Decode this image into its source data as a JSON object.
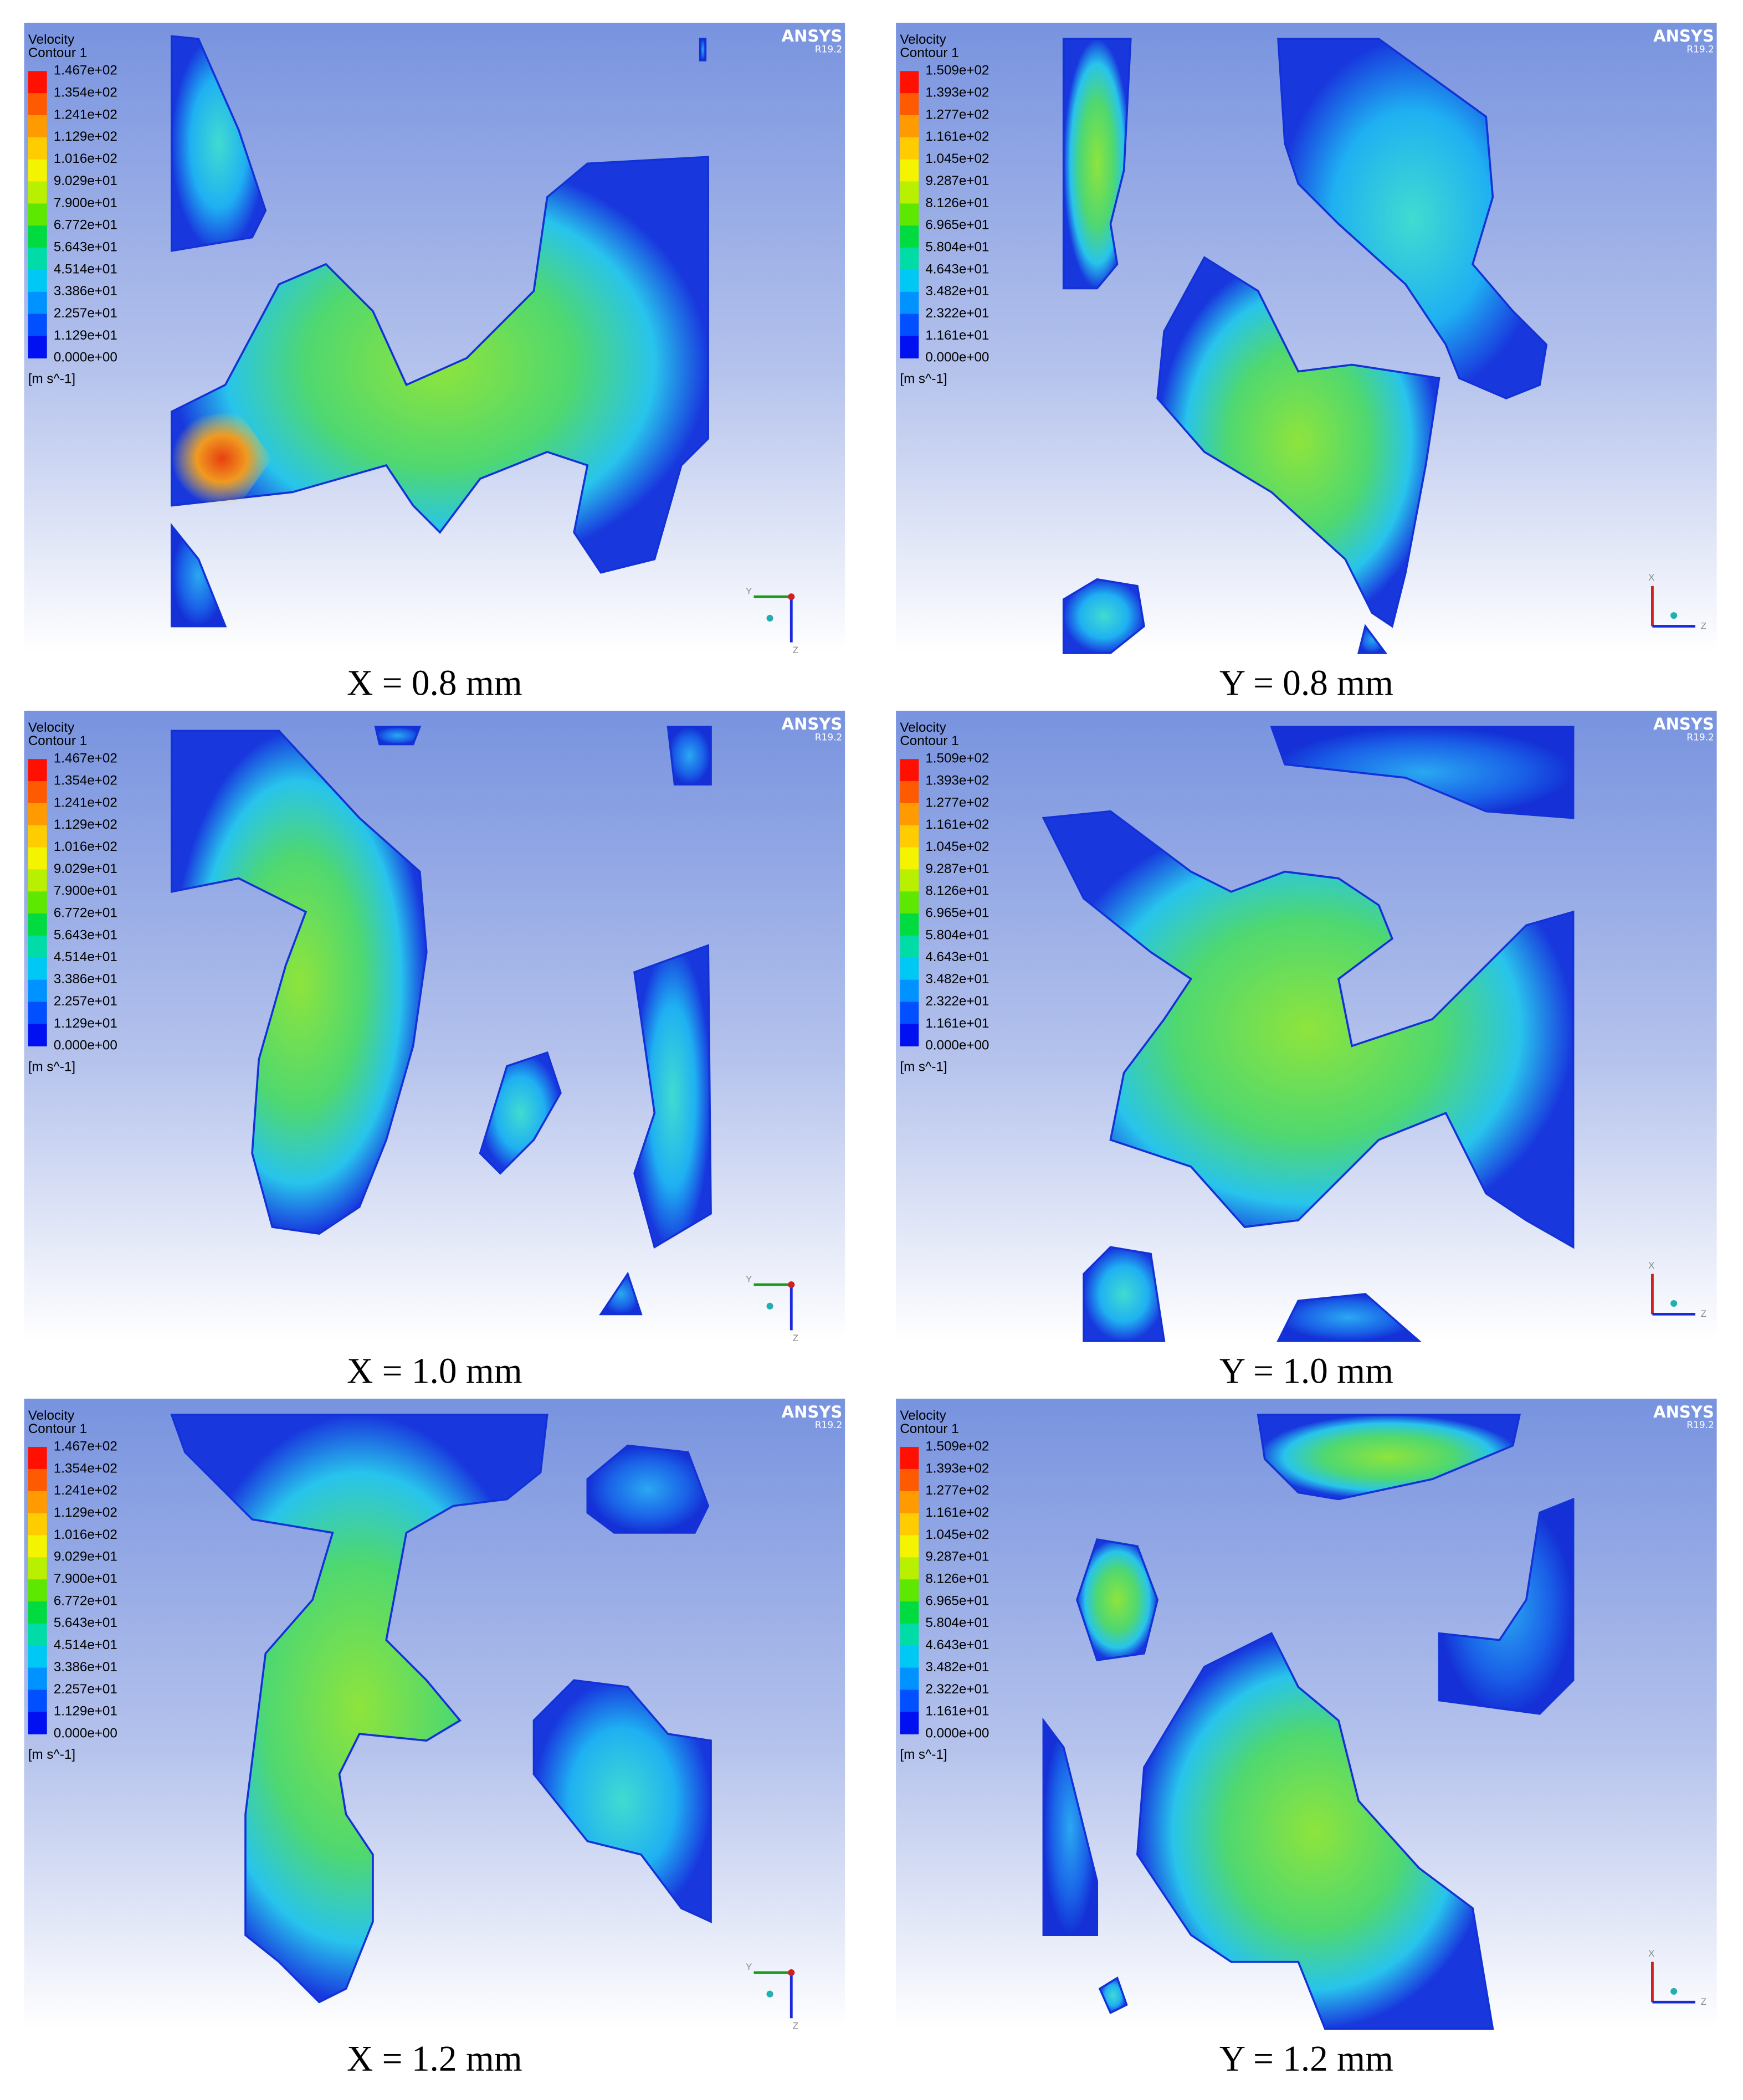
{
  "panels": [
    {
      "legend_title": "Velocity",
      "legend_subtitle": "Contour 1",
      "legend_labels": [
        "1.467e+02",
        "1.354e+02",
        "1.241e+02",
        "1.129e+02",
        "1.016e+02",
        "9.029e+01",
        "7.900e+01",
        "6.772e+01",
        "5.643e+01",
        "4.514e+01",
        "3.386e+01",
        "2.257e+01",
        "1.129e+01",
        "0.000e+00"
      ],
      "unit": "[m s^-1]",
      "brand": "ANSYS",
      "version": "R19.2",
      "triad_labels": [
        "Y",
        "Z"
      ],
      "caption": "X = 0.8 mm"
    },
    {
      "legend_title": "Velocity",
      "legend_subtitle": "Contour 1",
      "legend_labels": [
        "1.509e+02",
        "1.393e+02",
        "1.277e+02",
        "1.161e+02",
        "1.045e+02",
        "9.287e+01",
        "8.126e+01",
        "6.965e+01",
        "5.804e+01",
        "4.643e+01",
        "3.482e+01",
        "2.322e+01",
        "1.161e+01",
        "0.000e+00"
      ],
      "unit": "[m s^-1]",
      "brand": "ANSYS",
      "version": "R19.2",
      "triad_labels": [
        "X",
        "Z"
      ],
      "caption": "Y = 0.8 mm"
    },
    {
      "legend_title": "Velocity",
      "legend_subtitle": "Contour 1",
      "legend_labels": [
        "1.467e+02",
        "1.354e+02",
        "1.241e+02",
        "1.129e+02",
        "1.016e+02",
        "9.029e+01",
        "7.900e+01",
        "6.772e+01",
        "5.643e+01",
        "4.514e+01",
        "3.386e+01",
        "2.257e+01",
        "1.129e+01",
        "0.000e+00"
      ],
      "unit": "[m s^-1]",
      "brand": "ANSYS",
      "version": "R19.2",
      "triad_labels": [
        "Y",
        "Z"
      ],
      "caption": "X = 1.0 mm"
    },
    {
      "legend_title": "Velocity",
      "legend_subtitle": "Contour 1",
      "legend_labels": [
        "1.509e+02",
        "1.393e+02",
        "1.277e+02",
        "1.161e+02",
        "1.045e+02",
        "9.287e+01",
        "8.126e+01",
        "6.965e+01",
        "5.804e+01",
        "4.643e+01",
        "3.482e+01",
        "2.322e+01",
        "1.161e+01",
        "0.000e+00"
      ],
      "unit": "[m s^-1]",
      "brand": "ANSYS",
      "version": "R19.2",
      "triad_labels": [
        "X",
        "Z"
      ],
      "caption": "Y = 1.0 mm"
    },
    {
      "legend_title": "Velocity",
      "legend_subtitle": "Contour 1",
      "legend_labels": [
        "1.467e+02",
        "1.354e+02",
        "1.241e+02",
        "1.129e+02",
        "1.016e+02",
        "9.029e+01",
        "7.900e+01",
        "6.772e+01",
        "5.643e+01",
        "4.514e+01",
        "3.386e+01",
        "2.257e+01",
        "1.129e+01",
        "0.000e+00"
      ],
      "unit": "[m s^-1]",
      "brand": "ANSYS",
      "version": "R19.2",
      "triad_labels": [
        "Y",
        "Z"
      ],
      "caption": "X = 1.2 mm"
    },
    {
      "legend_title": "Velocity",
      "legend_subtitle": "Contour 1",
      "legend_labels": [
        "1.509e+02",
        "1.393e+02",
        "1.277e+02",
        "1.161e+02",
        "1.045e+02",
        "9.287e+01",
        "8.126e+01",
        "6.965e+01",
        "5.804e+01",
        "4.643e+01",
        "3.482e+01",
        "2.322e+01",
        "1.161e+01",
        "0.000e+00"
      ],
      "unit": "[m s^-1]",
      "brand": "ANSYS",
      "version": "R19.2",
      "triad_labels": [
        "X",
        "Z"
      ],
      "caption": "Y = 1.2 mm"
    }
  ]
}
